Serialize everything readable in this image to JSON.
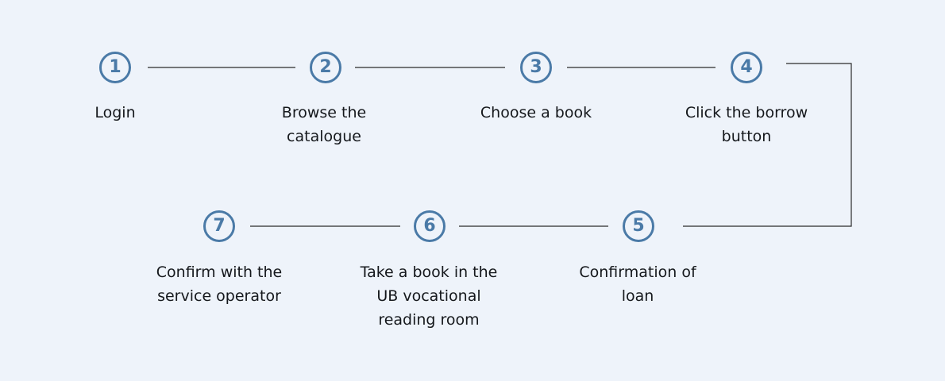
{
  "flow": {
    "accent_color": "#4a7aa7",
    "connector_color": "#2b2b2b",
    "background_color": "#eef3fa",
    "steps": [
      {
        "number": "1",
        "label_lines": [
          "Login"
        ]
      },
      {
        "number": "2",
        "label_lines": [
          "Browse the",
          "catalogue"
        ]
      },
      {
        "number": "3",
        "label_lines": [
          "Choose a book"
        ]
      },
      {
        "number": "4",
        "label_lines": [
          "Click the borrow",
          "button"
        ]
      },
      {
        "number": "5",
        "label_lines": [
          "Confirmation of",
          "loan"
        ]
      },
      {
        "number": "6",
        "label_lines": [
          "Take a book in the",
          "UB vocational",
          "reading room"
        ]
      },
      {
        "number": "7",
        "label_lines": [
          "Confirm with the",
          "service operator"
        ]
      }
    ]
  }
}
